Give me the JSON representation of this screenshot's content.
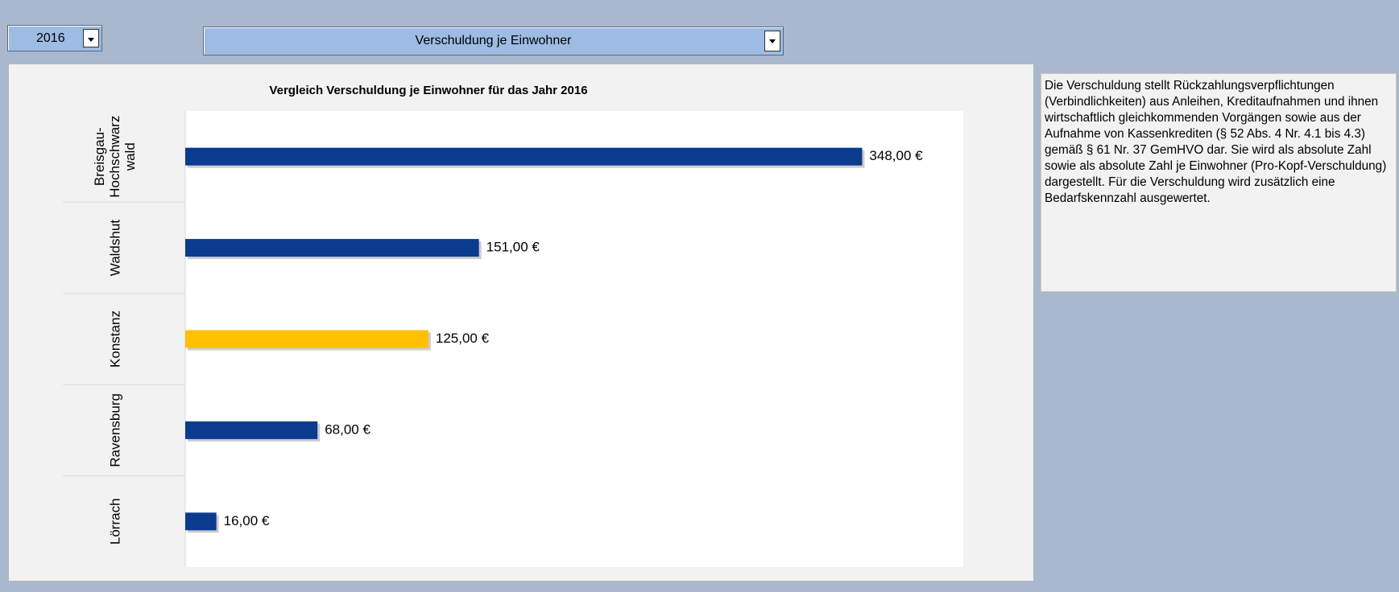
{
  "controls": {
    "year": "2016",
    "indicator": "Verschuldung je Einwohner"
  },
  "description": "Die Verschuldung stellt Rückzahlungsverpflichtungen (Verbindlichkeiten) aus Anleihen, Kreditaufnahmen und ihnen wirtschaftlich gleichkommenden Vorgängen sowie aus der Aufnahme von Kassenkrediten (§ 52 Abs. 4 Nr. 4.1 bis 4.3) gemäß § 61 Nr. 37 GemHVO dar. Sie wird als absolute Zahl sowie als absolute Zahl je Einwohner (Pro-Kopf-Verschuldung) dargestellt. Für die Verschuldung wird zusätzlich eine Bedarfskennzahl ausgewertet.",
  "chart_data": {
    "type": "barh",
    "title": "Vergleich Verschuldung je Einwohner für das Jahr 2016",
    "categories": [
      "Breisgau-Hochschwarzwald",
      "Waldshut",
      "Konstanz",
      "Ravensburg",
      "Lörrach"
    ],
    "values": [
      348,
      151,
      125,
      68,
      16
    ],
    "value_labels": [
      "348,00 €",
      "151,00 €",
      "125,00 €",
      "68,00 €",
      "16,00 €"
    ],
    "colors": [
      "#0b3a8f",
      "#0b3a8f",
      "#ffc000",
      "#0b3a8f",
      "#0b3a8f"
    ],
    "xlim": [
      0,
      400
    ]
  }
}
